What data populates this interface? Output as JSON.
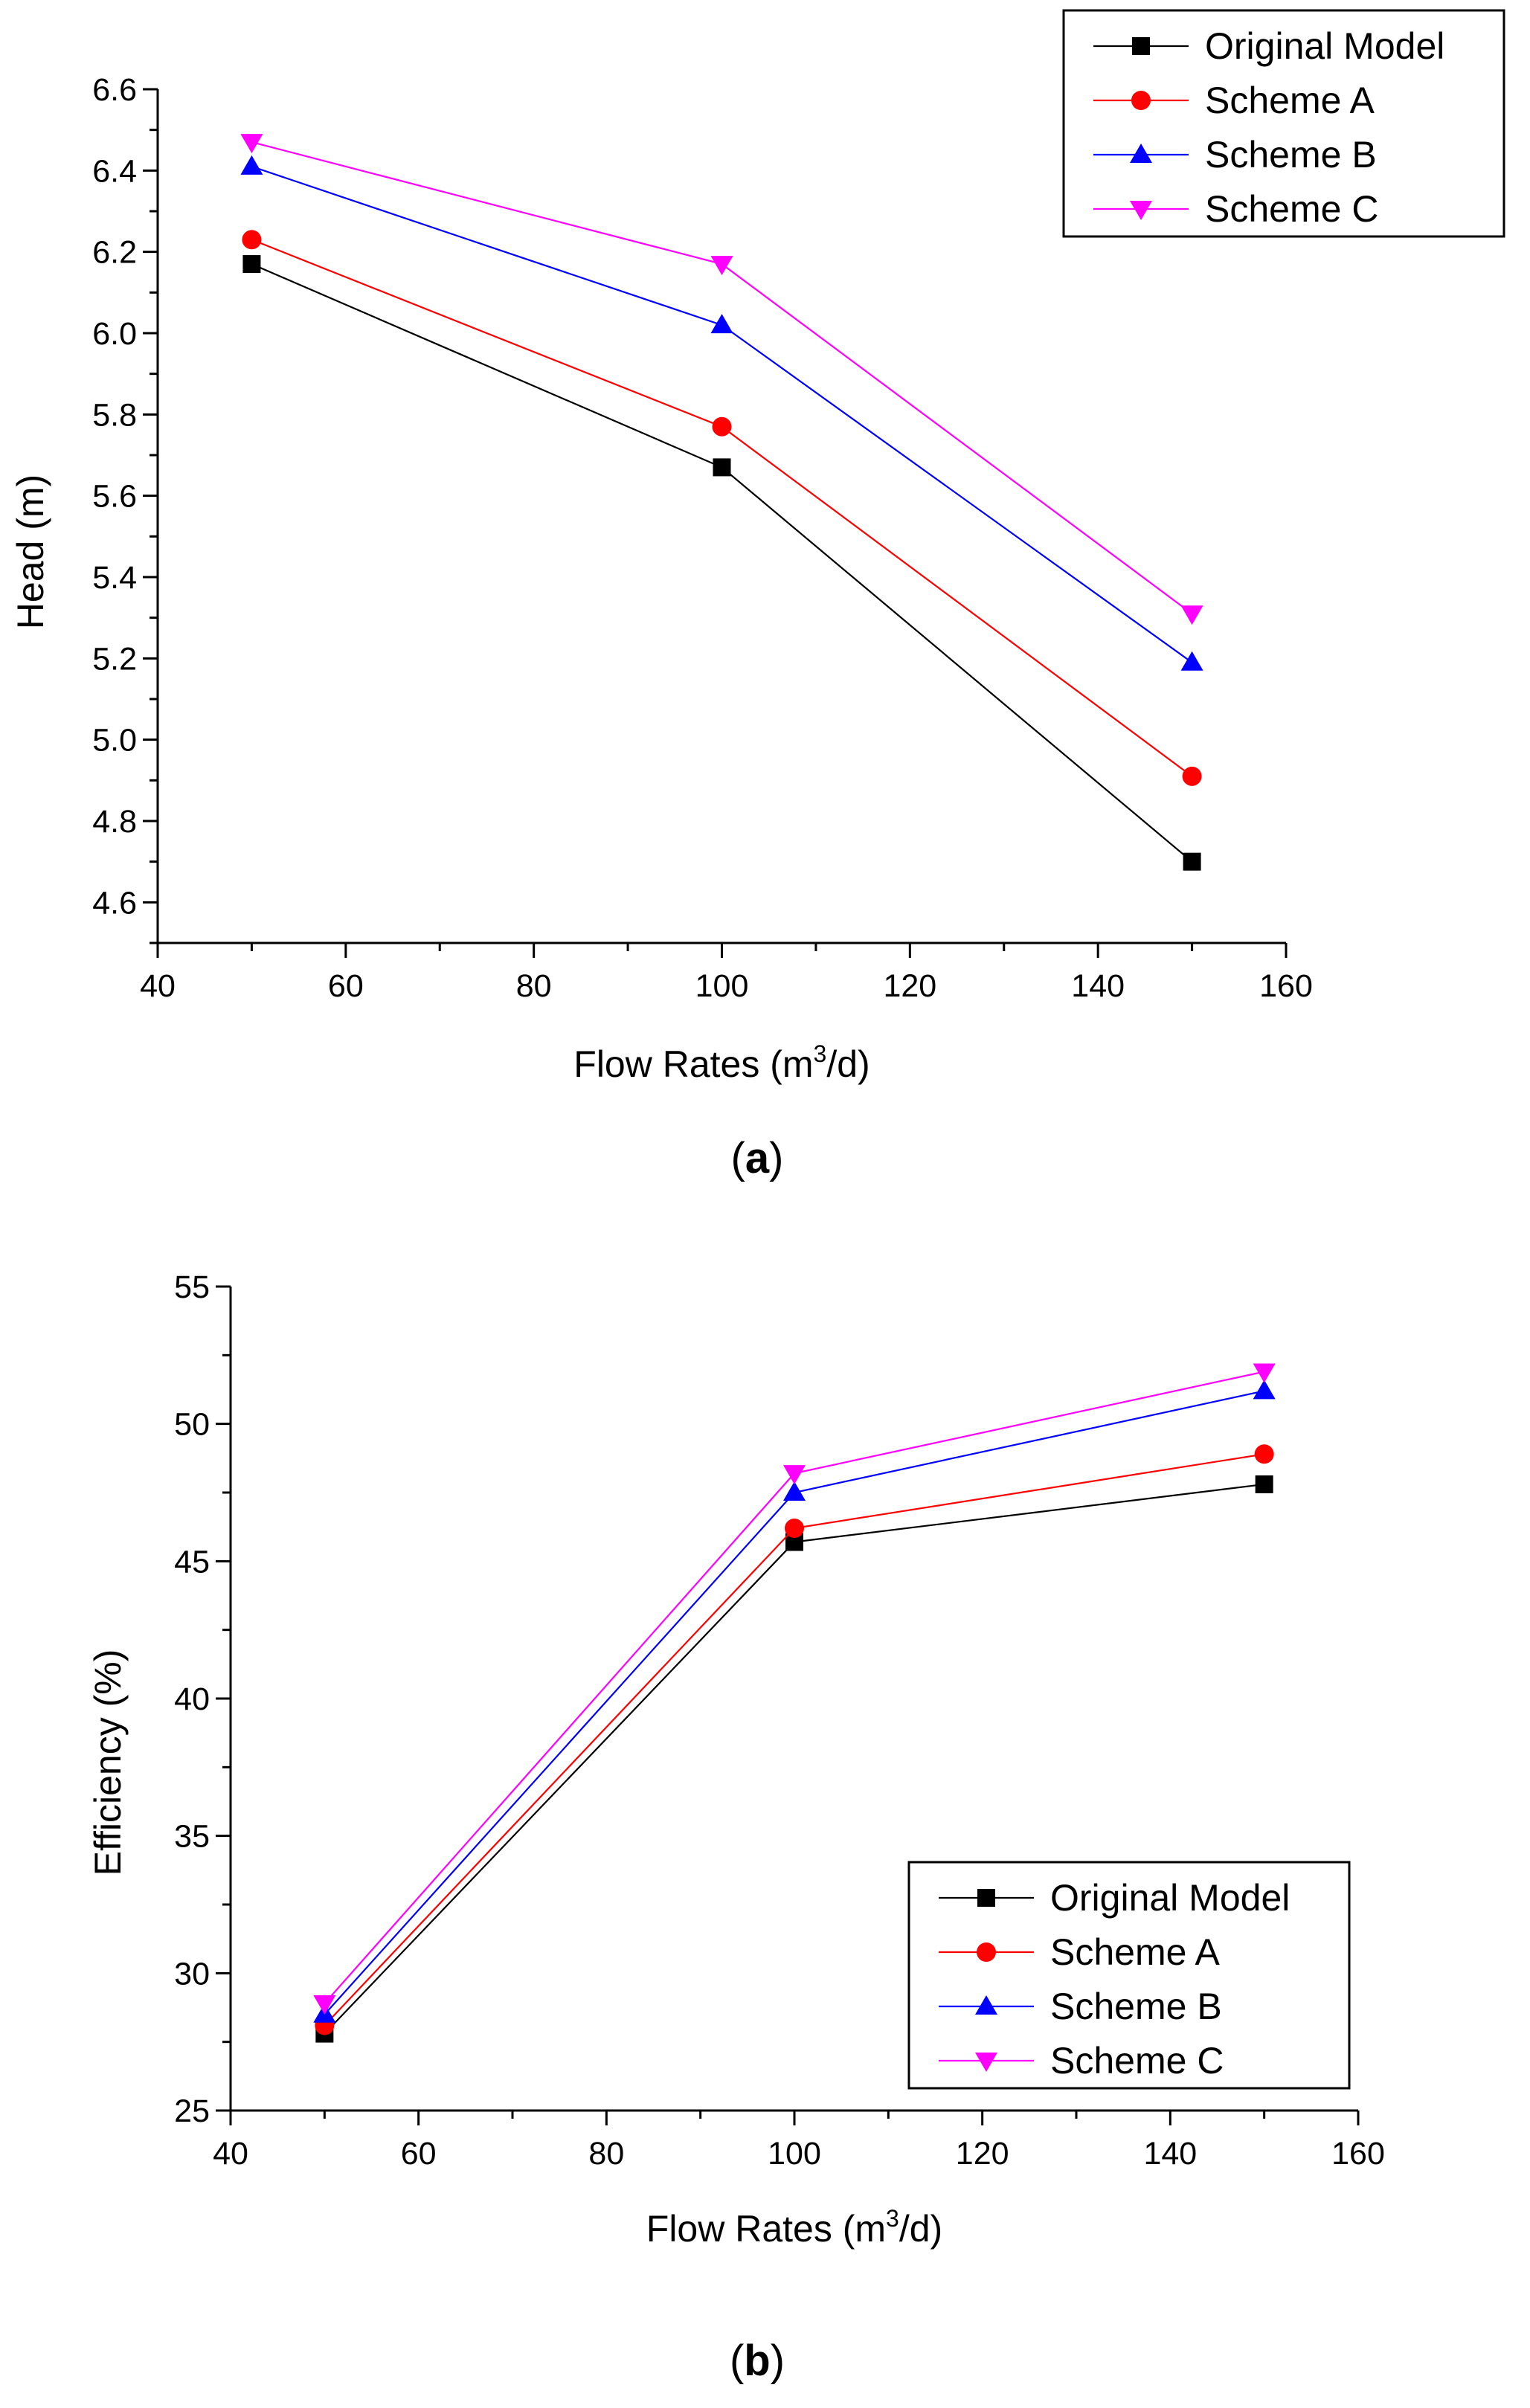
{
  "chart_data": [
    {
      "type": "line",
      "panel_label": "a",
      "xlabel_main": "Flow Rates (m",
      "xlabel_sup": "3",
      "xlabel_tail": "/d)",
      "ylabel": "Head (m)",
      "xlim": [
        40,
        160
      ],
      "ylim": [
        4.5,
        6.6
      ],
      "x_ticks": [
        40,
        60,
        80,
        100,
        120,
        140,
        160
      ],
      "y_ticks": [
        4.6,
        4.8,
        5.0,
        5.2,
        5.4,
        5.6,
        5.8,
        6.0,
        6.2,
        6.4,
        6.6
      ],
      "x_tick_labels": [
        "40",
        "60",
        "80",
        "100",
        "120",
        "140",
        "160"
      ],
      "y_tick_labels": [
        "4.6",
        "4.8",
        "5.0",
        "5.2",
        "5.4",
        "5.6",
        "5.8",
        "6.0",
        "6.2",
        "6.4",
        "6.6"
      ],
      "legend_position": "top-right",
      "x": [
        50,
        100,
        150
      ],
      "series": [
        {
          "name": "Original Model",
          "values": [
            6.17,
            5.67,
            4.7
          ],
          "color": "#000000",
          "marker": "square"
        },
        {
          "name": "Scheme A",
          "values": [
            6.23,
            5.77,
            4.91
          ],
          "color": "#ff0000",
          "marker": "circle"
        },
        {
          "name": "Scheme B",
          "values": [
            6.41,
            6.02,
            5.19
          ],
          "color": "#0000ff",
          "marker": "triangle-up"
        },
        {
          "name": "Scheme C",
          "values": [
            6.47,
            6.17,
            5.31
          ],
          "color": "#ff00ff",
          "marker": "triangle-down"
        }
      ]
    },
    {
      "type": "line",
      "panel_label": "b",
      "xlabel_main": "Flow Rates (m",
      "xlabel_sup": "3",
      "xlabel_tail": "/d)",
      "ylabel": "Efficiency (%)",
      "xlim": [
        40,
        160
      ],
      "ylim": [
        25,
        55
      ],
      "x_ticks": [
        40,
        60,
        80,
        100,
        120,
        140,
        160
      ],
      "y_ticks": [
        25,
        30,
        35,
        40,
        45,
        50,
        55
      ],
      "x_tick_labels": [
        "40",
        "60",
        "80",
        "100",
        "120",
        "140",
        "160"
      ],
      "y_tick_labels": [
        "25",
        "30",
        "35",
        "40",
        "45",
        "50",
        "55"
      ],
      "legend_position": "bottom-right",
      "x": [
        50,
        100,
        150
      ],
      "series": [
        {
          "name": "Original Model",
          "values": [
            27.8,
            45.7,
            47.8
          ],
          "color": "#000000",
          "marker": "square"
        },
        {
          "name": "Scheme A",
          "values": [
            28.1,
            46.2,
            48.9
          ],
          "color": "#ff0000",
          "marker": "circle"
        },
        {
          "name": "Scheme B",
          "values": [
            28.5,
            47.5,
            51.2
          ],
          "color": "#0000ff",
          "marker": "triangle-up"
        },
        {
          "name": "Scheme C",
          "values": [
            28.9,
            48.2,
            51.9
          ],
          "color": "#ff00ff",
          "marker": "triangle-down"
        }
      ]
    }
  ],
  "captions": {
    "a_open": "(",
    "a_label": "a",
    "a_close": ")",
    "b_open": "(",
    "b_label": "b",
    "b_close": ")"
  }
}
